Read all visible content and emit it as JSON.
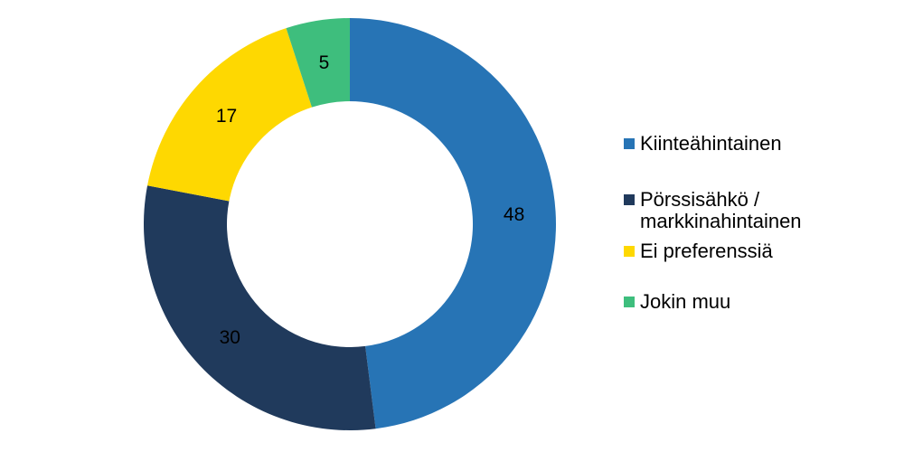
{
  "chart_data": {
    "type": "pie",
    "subtype": "donut",
    "title": "",
    "categories": [
      "Kiinteähintainen",
      "Pörssisähkö / markkinahintainen",
      "Ei preferenssiä",
      "Jokin muu"
    ],
    "values": [
      48,
      30,
      17,
      5
    ],
    "data_labels": [
      "48",
      "30",
      "17",
      "5"
    ],
    "colors": [
      "#2774B5",
      "#203A5C",
      "#FED801",
      "#3EBE7D"
    ],
    "start_angle_deg": 0,
    "direction": "clockwise",
    "hole_ratio": 0.6,
    "label_color": "#000000",
    "background": "#FFFFFF",
    "legend_position": "right",
    "legend": [
      {
        "label": "Kiinteähintainen",
        "color": "#2774B5"
      },
      {
        "label": "Pörssisähkö / markkinahintainen",
        "color": "#203A5C"
      },
      {
        "label": "Ei preferenssiä",
        "color": "#FED801"
      },
      {
        "label": "Jokin muu",
        "color": "#3EBE7D"
      }
    ]
  }
}
